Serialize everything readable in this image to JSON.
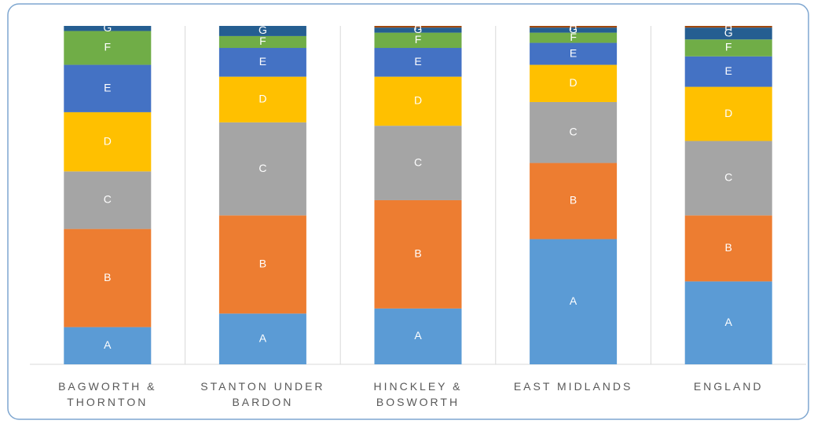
{
  "chart_data": {
    "type": "stacked_bar_100",
    "categories": [
      "BAGWORTH & THORNTON",
      "STANTON UNDER BARDON",
      "HINCKLEY & BOSWORTH",
      "EAST MIDLANDS",
      "ENGLAND"
    ],
    "series": [
      {
        "name": "A",
        "color": "#5b9bd5",
        "values": [
          11,
          15,
          16.5,
          37,
          24.5
        ]
      },
      {
        "name": "B",
        "color": "#ed7d31",
        "values": [
          29,
          29,
          32,
          22.5,
          19.5
        ]
      },
      {
        "name": "C",
        "color": "#a5a5a5",
        "values": [
          17,
          27.5,
          22,
          18,
          22
        ]
      },
      {
        "name": "D",
        "color": "#ffc000",
        "values": [
          17.5,
          13.5,
          14.5,
          11,
          16
        ]
      },
      {
        "name": "E",
        "color": "#4472c4",
        "values": [
          14,
          8.5,
          8.5,
          6.5,
          9
        ]
      },
      {
        "name": "F",
        "color": "#70ad47",
        "values": [
          10,
          3.5,
          4.5,
          3,
          5
        ]
      },
      {
        "name": "G",
        "color": "#255e91",
        "values": [
          1.5,
          3,
          1.5,
          1.5,
          3.5
        ]
      },
      {
        "name": "H",
        "color": "#9e480e",
        "values": [
          0,
          0,
          0.5,
          0.5,
          0.5
        ]
      }
    ],
    "ylim": [
      0,
      100
    ]
  }
}
